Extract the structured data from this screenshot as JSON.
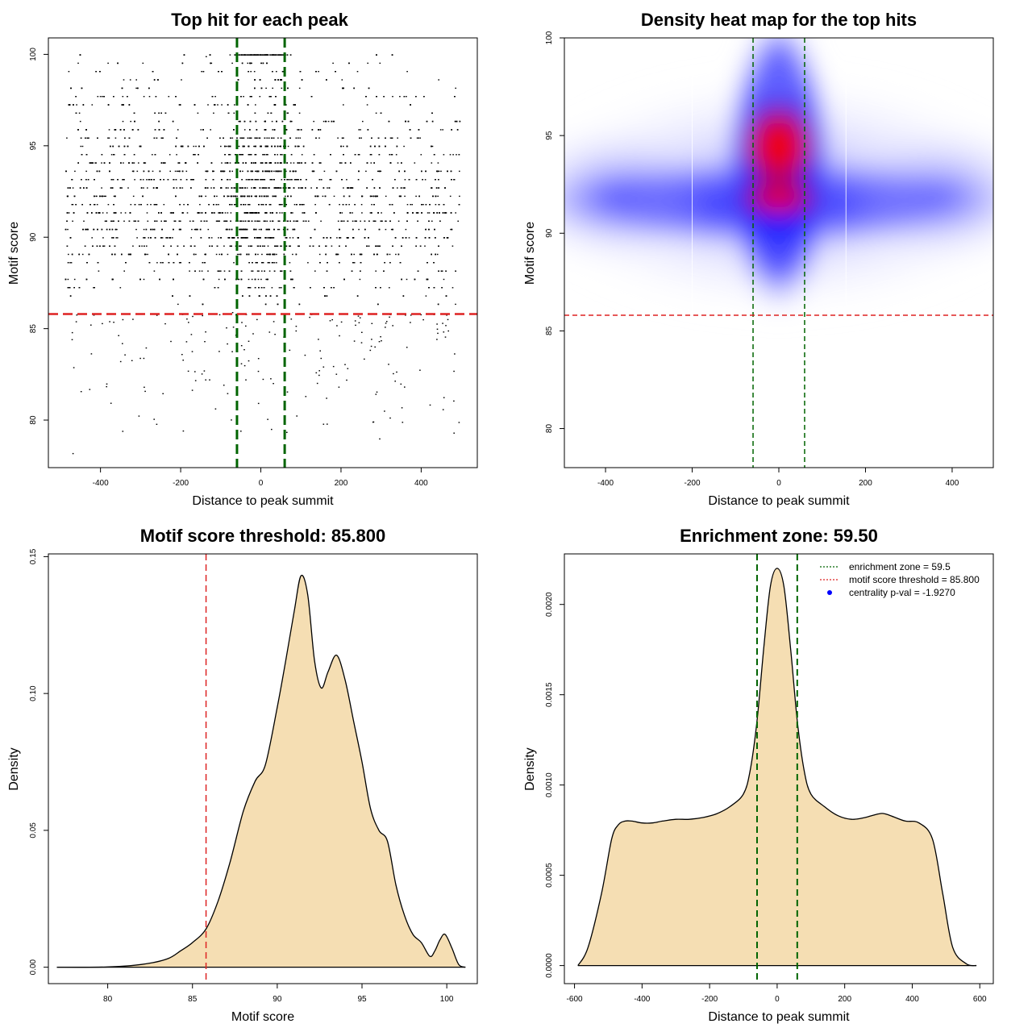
{
  "chart_data": [
    {
      "type": "scatter",
      "title": "Top hit for each peak",
      "xlabel": "Distance to peak summit",
      "ylabel": "Motif score",
      "xlim": [
        -530,
        540
      ],
      "ylim": [
        77.4,
        100.9
      ],
      "xticks": [
        -400,
        -200,
        0,
        200,
        400
      ],
      "yticks": [
        80,
        85,
        90,
        95,
        100
      ],
      "vlines": [
        -59.5,
        59.5
      ],
      "hline": 85.8,
      "colors": {
        "points": "#000000",
        "vlines": "#006400",
        "hline": "#dd2222"
      },
      "density_bands": [
        {
          "y_range": [
            85.8,
            100
          ],
          "x_range": [
            -490,
            495
          ],
          "points_per_band": "dense",
          "note": ""
        },
        {
          "y_range": [
            77.9,
            85.8
          ],
          "x_range": [
            -490,
            495
          ],
          "points_per_band": "sparse",
          "note": ""
        }
      ]
    },
    {
      "type": "heatmap",
      "title": "Density heat map for the top hits",
      "xlabel": "Distance to peak summit",
      "ylabel": "Motif score",
      "xlim": [
        -495,
        495
      ],
      "ylim": [
        78,
        100
      ],
      "xticks": [
        -400,
        -200,
        0,
        200,
        400
      ],
      "yticks": [
        80,
        85,
        90,
        95,
        100
      ],
      "vlines": [
        -59.5,
        59.5
      ],
      "hline": 85.8,
      "colorscale": [
        "#ffffff",
        "#0000ff",
        "#ff0000"
      ],
      "hotspots": [
        {
          "x": 0,
          "y": 94.5,
          "level": "high"
        },
        {
          "x": 0,
          "y": 91.8,
          "level": "high"
        },
        {
          "x": 0,
          "y": 97,
          "level": "medium"
        },
        {
          "x": 0,
          "y": 91.6,
          "level": "band"
        }
      ]
    },
    {
      "type": "area",
      "title": "Motif score threshold: 85.800",
      "xlabel": "Motif score",
      "ylabel": "Density",
      "xlim": [
        76.5,
        101.8
      ],
      "ylim": [
        -0.006,
        0.151
      ],
      "xticks": [
        80,
        85,
        90,
        95,
        100
      ],
      "yticks": [
        0.0,
        0.05,
        0.1,
        0.15
      ],
      "ytick_labels": [
        "0.00",
        "0.05",
        "0.10",
        "0.15"
      ],
      "vline": 85.8,
      "fill": "#f5deb3",
      "x": [
        77.0,
        80.0,
        82.0,
        83.5,
        84.3,
        85.0,
        85.8,
        86.5,
        87.2,
        88.0,
        88.7,
        89.3,
        90.0,
        90.5,
        91.0,
        91.4,
        91.8,
        92.2,
        92.6,
        93.0,
        93.5,
        94.0,
        94.5,
        95.0,
        95.5,
        96.0,
        96.5,
        97.0,
        97.5,
        98.0,
        98.5,
        99.0,
        99.3,
        99.6,
        99.9,
        100.3,
        100.7,
        101.1
      ],
      "y": [
        0.0,
        0.0001,
        0.001,
        0.003,
        0.006,
        0.009,
        0.014,
        0.024,
        0.038,
        0.057,
        0.068,
        0.074,
        0.095,
        0.112,
        0.13,
        0.143,
        0.136,
        0.112,
        0.102,
        0.108,
        0.114,
        0.105,
        0.09,
        0.075,
        0.058,
        0.05,
        0.046,
        0.03,
        0.019,
        0.012,
        0.009,
        0.004,
        0.006,
        0.01,
        0.012,
        0.007,
        0.001,
        0.0
      ]
    },
    {
      "type": "area",
      "title": "Enrichment zone: 59.50",
      "xlabel": "Distance to peak summit",
      "ylabel": "Density",
      "xlim": [
        -630,
        640
      ],
      "ylim": [
        -0.0001,
        0.00228
      ],
      "xticks": [
        -600,
        -400,
        -200,
        0,
        200,
        400,
        600
      ],
      "yticks": [
        0.0,
        0.0005,
        0.001,
        0.0015,
        0.002
      ],
      "ytick_labels": [
        "0.0000",
        "0.0005",
        "0.0010",
        "0.0015",
        "0.0020"
      ],
      "vlines": [
        -59.5,
        59.5
      ],
      "fill": "#f5deb3",
      "x": [
        -590,
        -560,
        -520,
        -490,
        -470,
        -450,
        -430,
        -400,
        -370,
        -340,
        -300,
        -260,
        -220,
        -180,
        -140,
        -100,
        -80,
        -60,
        -40,
        -20,
        0,
        20,
        40,
        60,
        80,
        100,
        140,
        180,
        220,
        260,
        300,
        320,
        350,
        380,
        420,
        460,
        490,
        520,
        560,
        590
      ],
      "y": [
        0.0,
        0.0001,
        0.0004,
        0.0007,
        0.00078,
        0.0008,
        0.0008,
        0.00079,
        0.00079,
        0.0008,
        0.00081,
        0.00081,
        0.00082,
        0.00084,
        0.00088,
        0.00095,
        0.00108,
        0.00135,
        0.00175,
        0.0021,
        0.0022,
        0.0021,
        0.00175,
        0.00135,
        0.00108,
        0.00095,
        0.00088,
        0.00083,
        0.00081,
        0.00082,
        0.00084,
        0.00084,
        0.00082,
        0.0008,
        0.00079,
        0.0007,
        0.0004,
        0.0001,
        1e-05,
        0.0
      ],
      "legend": {
        "position": "top-right",
        "items": [
          {
            "label": "enrichment zone = 59.5",
            "color": "#006400",
            "kind": "dotted-line"
          },
          {
            "label": "motif score threshold = 85.800",
            "color": "#dd2222",
            "kind": "dotted-line"
          },
          {
            "label": "centrality p-val = -1.9270",
            "color": "#0000ff",
            "kind": "point"
          }
        ]
      }
    }
  ]
}
